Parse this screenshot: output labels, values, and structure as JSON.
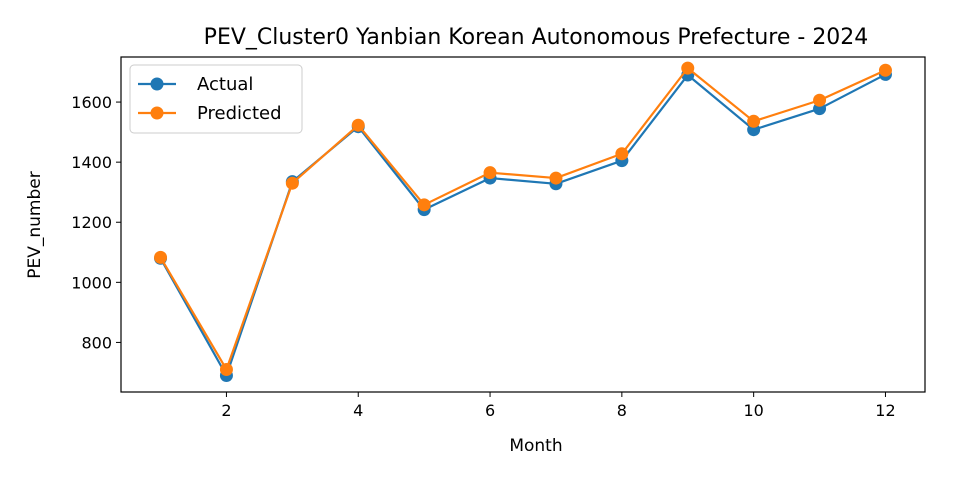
{
  "chart_data": {
    "type": "line",
    "title": "PEV_Cluster0 Yanbian Korean Autonomous Prefecture - 2024",
    "xlabel": "Month",
    "ylabel": "PEV_number",
    "xlim": [
      0.4,
      12.6
    ],
    "ylim": [
      635,
      1750
    ],
    "x": [
      1,
      2,
      3,
      4,
      5,
      6,
      7,
      8,
      9,
      10,
      11,
      12
    ],
    "x_ticks": [
      2,
      4,
      6,
      8,
      10,
      12
    ],
    "y_ticks": [
      800,
      1000,
      1200,
      1400,
      1600
    ],
    "grid": false,
    "legend_position": "top-left",
    "series": [
      {
        "name": "Actual",
        "color": "#1f77b4",
        "marker": "circle",
        "values": [
          1080,
          690,
          1335,
          1518,
          1242,
          1347,
          1328,
          1405,
          1690,
          1508,
          1578,
          1692
        ]
      },
      {
        "name": "Predicted",
        "color": "#ff7f0e",
        "marker": "circle",
        "values": [
          1083,
          710,
          1330,
          1523,
          1258,
          1365,
          1347,
          1428,
          1713,
          1536,
          1606,
          1706
        ]
      }
    ]
  }
}
